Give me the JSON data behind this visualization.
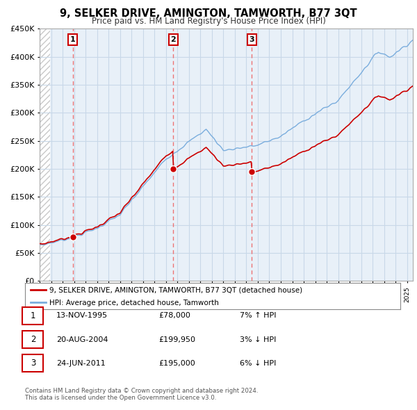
{
  "title": "9, SELKER DRIVE, AMINGTON, TAMWORTH, B77 3QT",
  "subtitle": "Price paid vs. HM Land Registry's House Price Index (HPI)",
  "ylabel_ticks": [
    "£0",
    "£50K",
    "£100K",
    "£150K",
    "£200K",
    "£250K",
    "£300K",
    "£350K",
    "£400K",
    "£450K"
  ],
  "ytick_values": [
    0,
    50000,
    100000,
    150000,
    200000,
    250000,
    300000,
    350000,
    400000,
    450000
  ],
  "legend_line1": "9, SELKER DRIVE, AMINGTON, TAMWORTH, B77 3QT (detached house)",
  "legend_line2": "HPI: Average price, detached house, Tamworth",
  "sale_dates": [
    1995.88,
    2004.63,
    2011.48
  ],
  "sale_prices": [
    78000,
    199950,
    195000
  ],
  "sale_labels": [
    "1",
    "2",
    "3"
  ],
  "table_data": [
    [
      "1",
      "13-NOV-1995",
      "£78,000",
      "7% ↑ HPI"
    ],
    [
      "2",
      "20-AUG-2004",
      "£199,950",
      "3% ↓ HPI"
    ],
    [
      "3",
      "24-JUN-2011",
      "£195,000",
      "6% ↓ HPI"
    ]
  ],
  "footer": "Contains HM Land Registry data © Crown copyright and database right 2024.\nThis data is licensed under the Open Government Licence v3.0.",
  "line_color_red": "#cc0000",
  "line_color_blue": "#7aaddd",
  "dot_color_red": "#cc0000",
  "vline_color": "#ee6666",
  "grid_color": "#c8d8e8",
  "bg_color": "#e8f0f8",
  "hatch_color": "#c8c8c8",
  "xlim_min": 1993.0,
  "xlim_max": 2025.5,
  "ylim_min": 0,
  "ylim_max": 450000
}
